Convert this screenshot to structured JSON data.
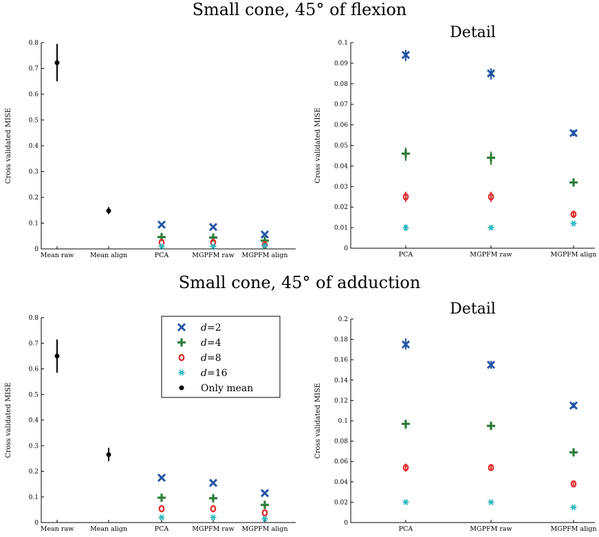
{
  "figure": {
    "top_title": "Small cone, 45° of flexion",
    "bottom_title": "Small cone, 45° of adduction"
  },
  "legend": {
    "entries": [
      {
        "label": "d=2",
        "var": "d",
        "value": "=2",
        "marker": "x",
        "color": "#2255A4"
      },
      {
        "label": "d=4",
        "var": "d",
        "value": "=4",
        "marker": "plus",
        "color": "#2E7D3A"
      },
      {
        "label": "d=8",
        "var": "d",
        "value": "=8",
        "marker": "circle",
        "color": "#E03030"
      },
      {
        "label": "d=16",
        "var": "d",
        "value": "=16",
        "marker": "star",
        "color": "#2DB8C0"
      },
      {
        "label": "Only mean",
        "var": "",
        "value": "Only mean",
        "marker": "dot",
        "color": "#000000"
      }
    ]
  },
  "chart_data": [
    {
      "type": "scatter",
      "title": "",
      "ylabel": "Cross validated MISE",
      "categories": [
        "Mean raw",
        "Mean align",
        "PCA",
        "MGPFM raw",
        "MGPFM align"
      ],
      "ylim": [
        0,
        0.8
      ],
      "yticks": [
        0,
        0.1,
        0.2,
        0.3,
        0.4,
        0.5,
        0.6,
        0.7,
        0.8
      ],
      "ytick_labels": [
        "0",
        "0.1",
        "0.2",
        "0.3",
        "0.4",
        "0.5",
        "0.6",
        "0.7",
        "0.8"
      ],
      "series": [
        {
          "name": "Only mean",
          "marker": "dot",
          "color": "#000000",
          "points": [
            {
              "x": "Mean raw",
              "y": 0.722,
              "lo": 0.65,
              "hi": 0.795
            },
            {
              "x": "Mean align",
              "y": 0.148,
              "lo": 0.135,
              "hi": 0.162
            }
          ]
        },
        {
          "name": "d=2",
          "marker": "x",
          "color": "#2255A4",
          "points": [
            {
              "x": "PCA",
              "y": 0.094
            },
            {
              "x": "MGPFM raw",
              "y": 0.085
            },
            {
              "x": "MGPFM align",
              "y": 0.056
            }
          ]
        },
        {
          "name": "d=4",
          "marker": "plus",
          "color": "#2E7D3A",
          "points": [
            {
              "x": "PCA",
              "y": 0.046
            },
            {
              "x": "MGPFM raw",
              "y": 0.044
            },
            {
              "x": "MGPFM align",
              "y": 0.032
            }
          ]
        },
        {
          "name": "d=8",
          "marker": "circle",
          "color": "#E03030",
          "points": [
            {
              "x": "PCA",
              "y": 0.025
            },
            {
              "x": "MGPFM raw",
              "y": 0.025
            },
            {
              "x": "MGPFM align",
              "y": 0.016
            }
          ]
        },
        {
          "name": "d=16",
          "marker": "star",
          "color": "#2DB8C0",
          "points": [
            {
              "x": "PCA",
              "y": 0.01
            },
            {
              "x": "MGPFM raw",
              "y": 0.01
            },
            {
              "x": "MGPFM align",
              "y": 0.012
            }
          ]
        }
      ]
    },
    {
      "type": "scatter",
      "title": "Detail",
      "ylabel": "Cross validated MISE",
      "categories": [
        "PCA",
        "MGPFM raw",
        "MGPFM align"
      ],
      "ylim": [
        0,
        0.1
      ],
      "yticks": [
        0,
        0.01,
        0.02,
        0.03,
        0.04,
        0.05,
        0.06,
        0.07,
        0.08,
        0.09,
        0.1
      ],
      "ytick_labels": [
        "0",
        "0.01",
        "0.02",
        "0.03",
        "0.04",
        "0.05",
        "0.06",
        "0.07",
        "0.08",
        "0.09",
        "0.1"
      ],
      "series": [
        {
          "name": "d=2",
          "marker": "x",
          "color": "#2255A4",
          "points": [
            {
              "x": "PCA",
              "y": 0.094,
              "lo": 0.091,
              "hi": 0.0965
            },
            {
              "x": "MGPFM raw",
              "y": 0.085,
              "lo": 0.082,
              "hi": 0.0875
            },
            {
              "x": "MGPFM align",
              "y": 0.056,
              "lo": 0.0545,
              "hi": 0.0575
            }
          ]
        },
        {
          "name": "d=4",
          "marker": "plus",
          "color": "#2E7D3A",
          "points": [
            {
              "x": "PCA",
              "y": 0.046,
              "lo": 0.0425,
              "hi": 0.049
            },
            {
              "x": "MGPFM raw",
              "y": 0.044,
              "lo": 0.0405,
              "hi": 0.047
            },
            {
              "x": "MGPFM align",
              "y": 0.032,
              "lo": 0.03,
              "hi": 0.034
            }
          ]
        },
        {
          "name": "d=8",
          "marker": "circle",
          "color": "#E03030",
          "points": [
            {
              "x": "PCA",
              "y": 0.025,
              "lo": 0.0225,
              "hi": 0.0275
            },
            {
              "x": "MGPFM raw",
              "y": 0.025,
              "lo": 0.0225,
              "hi": 0.0275
            },
            {
              "x": "MGPFM align",
              "y": 0.0165,
              "lo": 0.0155,
              "hi": 0.0175
            }
          ]
        },
        {
          "name": "d=16",
          "marker": "star",
          "color": "#2DB8C0",
          "points": [
            {
              "x": "PCA",
              "y": 0.01,
              "lo": 0.0085,
              "hi": 0.0115
            },
            {
              "x": "MGPFM raw",
              "y": 0.01,
              "lo": 0.009,
              "hi": 0.011
            },
            {
              "x": "MGPFM align",
              "y": 0.012,
              "lo": 0.0115,
              "hi": 0.0125
            }
          ]
        }
      ]
    },
    {
      "type": "scatter",
      "title": "",
      "ylabel": "Cross validated MISE",
      "categories": [
        "Mean raw",
        "Mean align",
        "PCA",
        "MGPFM raw",
        "MGPFM align"
      ],
      "ylim": [
        0,
        0.8
      ],
      "yticks": [
        0,
        0.1,
        0.2,
        0.3,
        0.4,
        0.5,
        0.6,
        0.7,
        0.8
      ],
      "ytick_labels": [
        "0",
        "0.1",
        "0.2",
        "0.3",
        "0.4",
        "0.5",
        "0.6",
        "0.7",
        "0.8"
      ],
      "series": [
        {
          "name": "Only mean",
          "marker": "dot",
          "color": "#000000",
          "points": [
            {
              "x": "Mean raw",
              "y": 0.65,
              "lo": 0.585,
              "hi": 0.715
            },
            {
              "x": "Mean align",
              "y": 0.265,
              "lo": 0.24,
              "hi": 0.292
            }
          ]
        },
        {
          "name": "d=2",
          "marker": "x",
          "color": "#2255A4",
          "points": [
            {
              "x": "PCA",
              "y": 0.175
            },
            {
              "x": "MGPFM raw",
              "y": 0.155
            },
            {
              "x": "MGPFM align",
              "y": 0.115
            }
          ]
        },
        {
          "name": "d=4",
          "marker": "plus",
          "color": "#2E7D3A",
          "points": [
            {
              "x": "PCA",
              "y": 0.097
            },
            {
              "x": "MGPFM raw",
              "y": 0.095
            },
            {
              "x": "MGPFM align",
              "y": 0.069
            }
          ]
        },
        {
          "name": "d=8",
          "marker": "circle",
          "color": "#E03030",
          "points": [
            {
              "x": "PCA",
              "y": 0.054
            },
            {
              "x": "MGPFM raw",
              "y": 0.054
            },
            {
              "x": "MGPFM align",
              "y": 0.038
            }
          ]
        },
        {
          "name": "d=16",
          "marker": "star",
          "color": "#2DB8C0",
          "points": [
            {
              "x": "PCA",
              "y": 0.02
            },
            {
              "x": "MGPFM raw",
              "y": 0.02
            },
            {
              "x": "MGPFM align",
              "y": 0.015
            }
          ]
        }
      ]
    },
    {
      "type": "scatter",
      "title": "Detail",
      "ylabel": "Cross validated MISE",
      "categories": [
        "PCA",
        "MGPFM raw",
        "MGPFM align"
      ],
      "ylim": [
        0,
        0.2
      ],
      "yticks": [
        0,
        0.02,
        0.04,
        0.06,
        0.08,
        0.1,
        0.12,
        0.14,
        0.16,
        0.18,
        0.2
      ],
      "ytick_labels": [
        "0",
        "0.02",
        "0.04",
        "0.06",
        "0.08",
        "0.1",
        "0.12",
        "0.14",
        "0.16",
        "0.18",
        "0.2"
      ],
      "series": [
        {
          "name": "d=2",
          "marker": "x",
          "color": "#2255A4",
          "points": [
            {
              "x": "PCA",
              "y": 0.175,
              "lo": 0.17,
              "hi": 0.181
            },
            {
              "x": "MGPFM raw",
              "y": 0.155,
              "lo": 0.151,
              "hi": 0.159
            },
            {
              "x": "MGPFM align",
              "y": 0.115,
              "lo": 0.1125,
              "hi": 0.118
            }
          ]
        },
        {
          "name": "d=4",
          "marker": "plus",
          "color": "#2E7D3A",
          "points": [
            {
              "x": "PCA",
              "y": 0.097,
              "lo": 0.092,
              "hi": 0.101
            },
            {
              "x": "MGPFM raw",
              "y": 0.095,
              "lo": 0.0915,
              "hi": 0.0985
            },
            {
              "x": "MGPFM align",
              "y": 0.069,
              "lo": 0.066,
              "hi": 0.072
            }
          ]
        },
        {
          "name": "d=8",
          "marker": "circle",
          "color": "#E03030",
          "points": [
            {
              "x": "PCA",
              "y": 0.054,
              "lo": 0.05,
              "hi": 0.058
            },
            {
              "x": "MGPFM raw",
              "y": 0.054,
              "lo": 0.0515,
              "hi": 0.0565
            },
            {
              "x": "MGPFM align",
              "y": 0.038,
              "lo": 0.0365,
              "hi": 0.0395
            }
          ]
        },
        {
          "name": "d=16",
          "marker": "star",
          "color": "#2DB8C0",
          "points": [
            {
              "x": "PCA",
              "y": 0.02,
              "lo": 0.0185,
              "hi": 0.0215
            },
            {
              "x": "MGPFM raw",
              "y": 0.02,
              "lo": 0.019,
              "hi": 0.021
            },
            {
              "x": "MGPFM align",
              "y": 0.015,
              "lo": 0.014,
              "hi": 0.016
            }
          ]
        }
      ]
    }
  ]
}
